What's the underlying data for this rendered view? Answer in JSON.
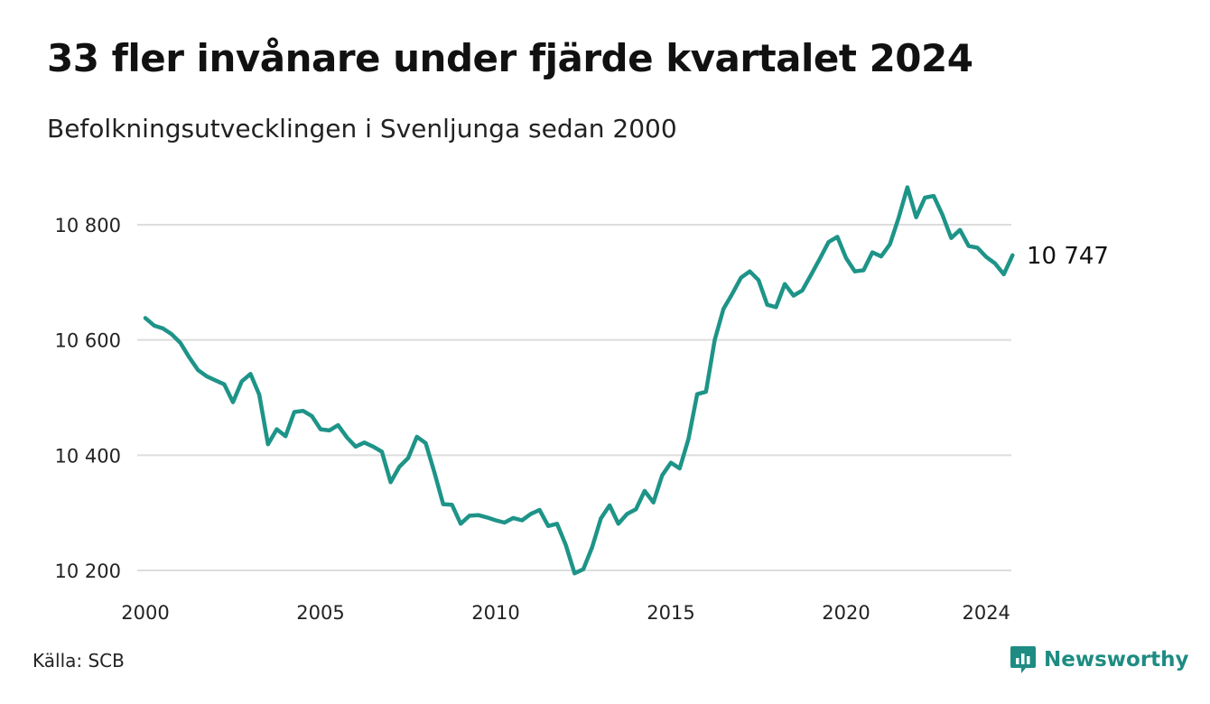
{
  "header": {
    "title": "33 fler invånare under fjärde kvartalet 2024",
    "subtitle": "Befolkningsutvecklingen i Svenljunga sedan 2000"
  },
  "footer": {
    "source": "Källa: SCB",
    "brand": "Newsworthy"
  },
  "colors": {
    "line": "#1e9488",
    "grid": "#dddddd",
    "brand": "#1e8c82"
  },
  "chart_data": {
    "type": "line",
    "title": "33 fler invånare under fjärde kvartalet 2024",
    "subtitle": "Befolkningsutvecklingen i Svenljunga sedan 2000",
    "xlabel": "",
    "ylabel": "",
    "x_ticks": [
      "2000",
      "2005",
      "2010",
      "2015",
      "2020",
      "2024"
    ],
    "y_ticks": [
      "10 200",
      "10 400",
      "10 600",
      "10 800"
    ],
    "ylim": [
      10200,
      10800
    ],
    "grid": "horizontal",
    "end_label": "10 747",
    "series": [
      {
        "x": [
          "2000Q1",
          "2000Q2",
          "2000Q3",
          "2000Q4",
          "2001Q1",
          "2001Q2",
          "2001Q3",
          "2001Q4",
          "2002Q1",
          "2002Q2",
          "2002Q3",
          "2002Q4",
          "2003Q1",
          "2003Q2",
          "2003Q3",
          "2003Q4",
          "2004Q1",
          "2004Q2",
          "2004Q3",
          "2004Q4",
          "2005Q1",
          "2005Q2",
          "2005Q3",
          "2005Q4",
          "2006Q1",
          "2006Q2",
          "2006Q3",
          "2006Q4",
          "2007Q1",
          "2007Q2",
          "2007Q3",
          "2007Q4",
          "2008Q1",
          "2008Q2",
          "2008Q3",
          "2008Q4",
          "2009Q1",
          "2009Q2",
          "2009Q3",
          "2009Q4",
          "2010Q1",
          "2010Q2",
          "2010Q3",
          "2010Q4",
          "2011Q1",
          "2011Q2",
          "2011Q3",
          "2011Q4",
          "2012Q1",
          "2012Q2",
          "2012Q3",
          "2012Q4",
          "2013Q1",
          "2013Q2",
          "2013Q3",
          "2013Q4",
          "2014Q1",
          "2014Q2",
          "2014Q3",
          "2014Q4",
          "2015Q1",
          "2015Q2",
          "2015Q3",
          "2015Q4",
          "2016Q1",
          "2016Q2",
          "2016Q3",
          "2016Q4",
          "2017Q1",
          "2017Q2",
          "2017Q3",
          "2017Q4",
          "2018Q1",
          "2018Q2",
          "2018Q3",
          "2018Q4",
          "2019Q1",
          "2019Q2",
          "2019Q3",
          "2019Q4",
          "2020Q1",
          "2020Q2",
          "2020Q3",
          "2020Q4",
          "2021Q1",
          "2021Q2",
          "2021Q3",
          "2021Q4",
          "2022Q1",
          "2022Q2",
          "2022Q3",
          "2022Q4",
          "2023Q1",
          "2023Q2",
          "2023Q3",
          "2023Q4",
          "2024Q1",
          "2024Q2",
          "2024Q3",
          "2024Q4"
        ],
        "values": [
          10638,
          10625,
          10620,
          10610,
          10595,
          10570,
          10548,
          10537,
          10530,
          10523,
          10492,
          10528,
          10541,
          10505,
          10419,
          10445,
          10433,
          10475,
          10477,
          10468,
          10445,
          10443,
          10452,
          10431,
          10415,
          10422,
          10415,
          10406,
          10353,
          10380,
          10395,
          10432,
          10421,
          10370,
          10315,
          10314,
          10281,
          10295,
          10296,
          10292,
          10287,
          10283,
          10291,
          10287,
          10298,
          10305,
          10277,
          10281,
          10244,
          10195,
          10202,
          10240,
          10290,
          10313,
          10281,
          10298,
          10306,
          10338,
          10318,
          10365,
          10387,
          10377,
          10428,
          10506,
          10510,
          10600,
          10654,
          10680,
          10708,
          10719,
          10704,
          10661,
          10657,
          10697,
          10677,
          10686,
          10713,
          10741,
          10770,
          10779,
          10742,
          10719,
          10721,
          10752,
          10745,
          10766,
          10812,
          10865,
          10813,
          10847,
          10850,
          10817,
          10777,
          10791,
          10763,
          10760,
          10744,
          10733,
          10714,
          10747
        ]
      }
    ]
  }
}
